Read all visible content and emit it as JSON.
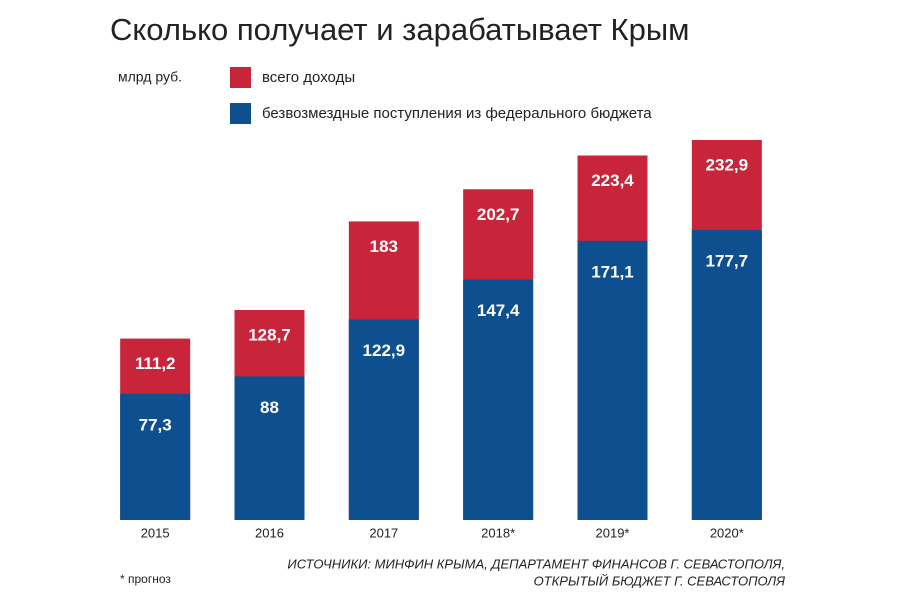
{
  "chart_data": {
    "type": "overlap-bar",
    "title": "Сколько получает и зарабатывает Крым",
    "unit_label": "млрд руб.",
    "categories": [
      "2015",
      "2016",
      "2017",
      "2018*",
      "2019*",
      "2020*"
    ],
    "series": [
      {
        "name": "всего доходы",
        "color": "#c8243a",
        "values": [
          111.2,
          128.7,
          183,
          202.7,
          223.4,
          232.9
        ],
        "value_labels": [
          "111,2",
          "128,7",
          "183",
          "202,7",
          "223,4",
          "232,9"
        ]
      },
      {
        "name": "безвозмездные поступления из федерального бюджета",
        "color": "#0d4f8f",
        "values": [
          77.3,
          88,
          122.9,
          147.4,
          171.1,
          177.7
        ],
        "value_labels": [
          "77,3",
          "88",
          "122,9",
          "147,4",
          "171,1",
          "177,7"
        ]
      }
    ],
    "footnote": "* прогноз",
    "source": [
      "ИСТОЧНИКИ: МИНФИН КРЫМА, ДЕПАРТАМЕНТ ФИНАНСОВ Г. СЕВАСТОПОЛЯ,",
      "ОТКРЫТЫЙ БЮДЖЕТ Г. СЕВАСТОПОЛЯ"
    ]
  }
}
